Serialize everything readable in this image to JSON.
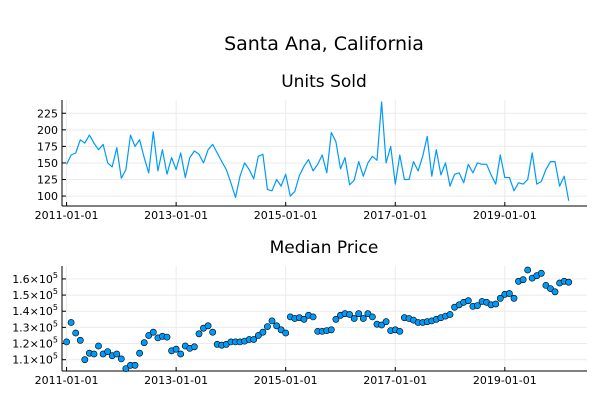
{
  "figure": {
    "title": "Santa Ana, California"
  },
  "chart_data": [
    {
      "type": "line",
      "title": "Units Sold",
      "xlabel": "",
      "ylabel": "",
      "color": "#009af9",
      "x_range": [
        "2010-12-01",
        "2020-07-01"
      ],
      "ylim": [
        85,
        245
      ],
      "y_ticks": [
        100,
        125,
        150,
        175,
        200,
        225
      ],
      "y_tick_labels": [
        "100",
        "125",
        "150",
        "175",
        "200",
        "225"
      ],
      "x_ticks": [
        "2011-01-01",
        "2013-01-01",
        "2015-01-01",
        "2017-01-01",
        "2019-01-01"
      ],
      "x_tick_labels": [
        "2011-01-01",
        "2013-01-01",
        "2015-01-01",
        "2017-01-01",
        "2019-01-01"
      ],
      "grid": true,
      "legend": "none",
      "x_start": "2011-01",
      "x_frequency": "monthly",
      "values": [
        148,
        162,
        165,
        185,
        180,
        192,
        180,
        170,
        178,
        150,
        144,
        173,
        127,
        140,
        192,
        175,
        185,
        158,
        135,
        197,
        138,
        170,
        133,
        158,
        140,
        165,
        128,
        158,
        168,
        163,
        150,
        170,
        178,
        165,
        152,
        140,
        120,
        98,
        130,
        150,
        140,
        126,
        160,
        163,
        110,
        108,
        125,
        115,
        133,
        100,
        107,
        131,
        145,
        155,
        138,
        148,
        162,
        135,
        196,
        182,
        141,
        158,
        117,
        124,
        152,
        130,
        150,
        160,
        154,
        242,
        150,
        175,
        118,
        162,
        125,
        125,
        152,
        138,
        160,
        190,
        130,
        170,
        132,
        150,
        115,
        133,
        135,
        120,
        148,
        135,
        150,
        148,
        148,
        132,
        118,
        162,
        128,
        128,
        108,
        120,
        118,
        125,
        165,
        118,
        122,
        140,
        152,
        152,
        115,
        130,
        93
      ]
    },
    {
      "type": "scatter",
      "title": "Median Price",
      "xlabel": "",
      "ylabel": "",
      "color": "#009af9",
      "x_range": [
        "2010-12-01",
        "2020-07-01"
      ],
      "ylim": [
        103000,
        168000
      ],
      "y_ticks": [
        110000,
        120000,
        130000,
        140000,
        150000,
        160000
      ],
      "y_tick_labels": [
        {
          "mantissa": "1.1",
          "base": "×10",
          "exp": "5"
        },
        {
          "mantissa": "1.2",
          "base": "×10",
          "exp": "5"
        },
        {
          "mantissa": "1.3",
          "base": "×10",
          "exp": "5"
        },
        {
          "mantissa": "1.4",
          "base": "×10",
          "exp": "5"
        },
        {
          "mantissa": "1.5",
          "base": "×10",
          "exp": "5"
        },
        {
          "mantissa": "1.6",
          "base": "×10",
          "exp": "5"
        }
      ],
      "x_ticks": [
        "2011-01-01",
        "2013-01-01",
        "2015-01-01",
        "2017-01-01",
        "2019-01-01"
      ],
      "x_tick_labels": [
        "2011-01-01",
        "2013-01-01",
        "2015-01-01",
        "2017-01-01",
        "2019-01-01"
      ],
      "grid": true,
      "legend": "none",
      "x_start": "2011-01",
      "x_frequency": "monthly",
      "values": [
        121000,
        133000,
        126500,
        122000,
        110000,
        114000,
        113500,
        118500,
        113500,
        115000,
        112500,
        113500,
        110500,
        104500,
        106500,
        106500,
        114000,
        120500,
        125000,
        127000,
        123500,
        124500,
        124000,
        115500,
        116500,
        113500,
        118500,
        117000,
        118000,
        126000,
        129500,
        131000,
        127000,
        119500,
        119000,
        119500,
        121000,
        121000,
        121000,
        121500,
        122500,
        122500,
        125000,
        127000,
        130500,
        134000,
        131000,
        128500,
        126500,
        136500,
        135500,
        136000,
        135000,
        137500,
        136500,
        127500,
        127500,
        128000,
        128500,
        135000,
        137500,
        138500,
        138000,
        135500,
        138500,
        135500,
        138500,
        136500,
        132000,
        131500,
        133500,
        128000,
        128500,
        127500,
        136000,
        135500,
        134500,
        133000,
        133000,
        133500,
        134000,
        135000,
        136000,
        137000,
        138000,
        142500,
        144000,
        145500,
        146500,
        143000,
        143500,
        146000,
        145500,
        144000,
        144500,
        148000,
        150500,
        151000,
        148000,
        158500,
        159500,
        165500,
        160500,
        162000,
        163500,
        156000,
        154000,
        152000,
        157500,
        158500,
        158000
      ]
    }
  ]
}
